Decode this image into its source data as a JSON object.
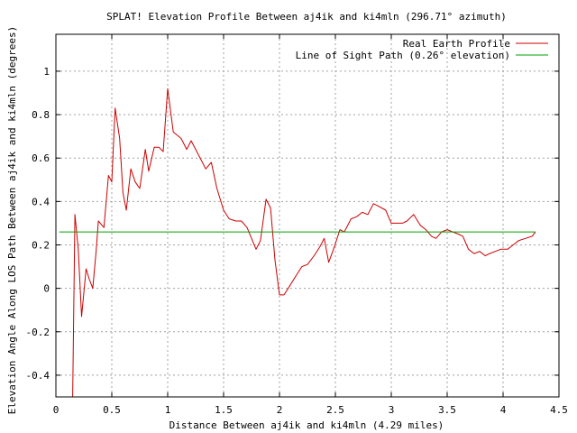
{
  "chart_data": {
    "type": "line",
    "title": "SPLAT! Elevation Profile Between aj4ik and ki4mln (296.71° azimuth)",
    "xlabel": "Distance Between aj4ik and ki4mln (4.29 miles)",
    "ylabel": "Elevation Angle Along LOS Path Between aj4ik and ki4mln (degrees)",
    "xlim": [
      0,
      4.5
    ],
    "ylim": [
      -0.5,
      1.17
    ],
    "xticks": [
      0,
      0.5,
      1,
      1.5,
      2,
      2.5,
      3,
      3.5,
      4,
      4.5
    ],
    "xtick_labels": [
      "0",
      "0.5",
      "1",
      "1.5",
      "2",
      "2.5",
      "3",
      "3.5",
      "4",
      "4.5"
    ],
    "yticks": [
      -0.4,
      -0.2,
      0,
      0.2,
      0.4,
      0.6,
      0.8,
      1
    ],
    "ytick_labels": [
      "-0.4",
      "-0.2",
      "0",
      "0.2",
      "0.4",
      "0.6",
      "0.8",
      "1"
    ],
    "grid": true,
    "legend_position": "top-right",
    "series": [
      {
        "name": "Real Earth Profile",
        "color": "#cc0000",
        "x": [
          0.15,
          0.16,
          0.17,
          0.2,
          0.23,
          0.27,
          0.3,
          0.33,
          0.36,
          0.38,
          0.43,
          0.47,
          0.5,
          0.53,
          0.57,
          0.6,
          0.63,
          0.67,
          0.71,
          0.75,
          0.8,
          0.83,
          0.88,
          0.92,
          0.96,
          1.0,
          1.05,
          1.12,
          1.17,
          1.21,
          1.27,
          1.34,
          1.39,
          1.44,
          1.5,
          1.55,
          1.61,
          1.66,
          1.71,
          1.79,
          1.83,
          1.88,
          1.92,
          1.96,
          2.0,
          2.04,
          2.09,
          2.15,
          2.2,
          2.25,
          2.31,
          2.36,
          2.4,
          2.44,
          2.49,
          2.54,
          2.58,
          2.64,
          2.69,
          2.74,
          2.79,
          2.84,
          2.88,
          2.95,
          3.0,
          3.05,
          3.1,
          3.14,
          3.2,
          3.26,
          3.31,
          3.36,
          3.4,
          3.45,
          3.5,
          3.55,
          3.6,
          3.64,
          3.69,
          3.74,
          3.79,
          3.84,
          3.88,
          3.93,
          3.98,
          4.04,
          4.09,
          4.14,
          4.2,
          4.26,
          4.29
        ],
        "y": [
          -0.5,
          -0.1,
          0.34,
          0.18,
          -0.13,
          0.09,
          0.04,
          0.0,
          0.17,
          0.31,
          0.28,
          0.52,
          0.49,
          0.83,
          0.69,
          0.44,
          0.36,
          0.55,
          0.49,
          0.46,
          0.64,
          0.54,
          0.65,
          0.65,
          0.63,
          0.92,
          0.72,
          0.69,
          0.64,
          0.68,
          0.62,
          0.55,
          0.58,
          0.46,
          0.36,
          0.32,
          0.31,
          0.31,
          0.28,
          0.18,
          0.22,
          0.41,
          0.37,
          0.13,
          -0.03,
          -0.03,
          0.01,
          0.06,
          0.1,
          0.11,
          0.15,
          0.19,
          0.23,
          0.12,
          0.19,
          0.27,
          0.26,
          0.32,
          0.33,
          0.35,
          0.34,
          0.39,
          0.38,
          0.36,
          0.3,
          0.3,
          0.3,
          0.31,
          0.34,
          0.29,
          0.27,
          0.24,
          0.23,
          0.26,
          0.27,
          0.26,
          0.25,
          0.24,
          0.18,
          0.16,
          0.17,
          0.15,
          0.16,
          0.17,
          0.18,
          0.18,
          0.2,
          0.22,
          0.23,
          0.24,
          0.26
        ]
      },
      {
        "name": "Line of Sight Path (0.26° elevation)",
        "color": "#00a000",
        "x": [
          0.03,
          4.29
        ],
        "y": [
          0.26,
          0.26
        ]
      }
    ]
  }
}
